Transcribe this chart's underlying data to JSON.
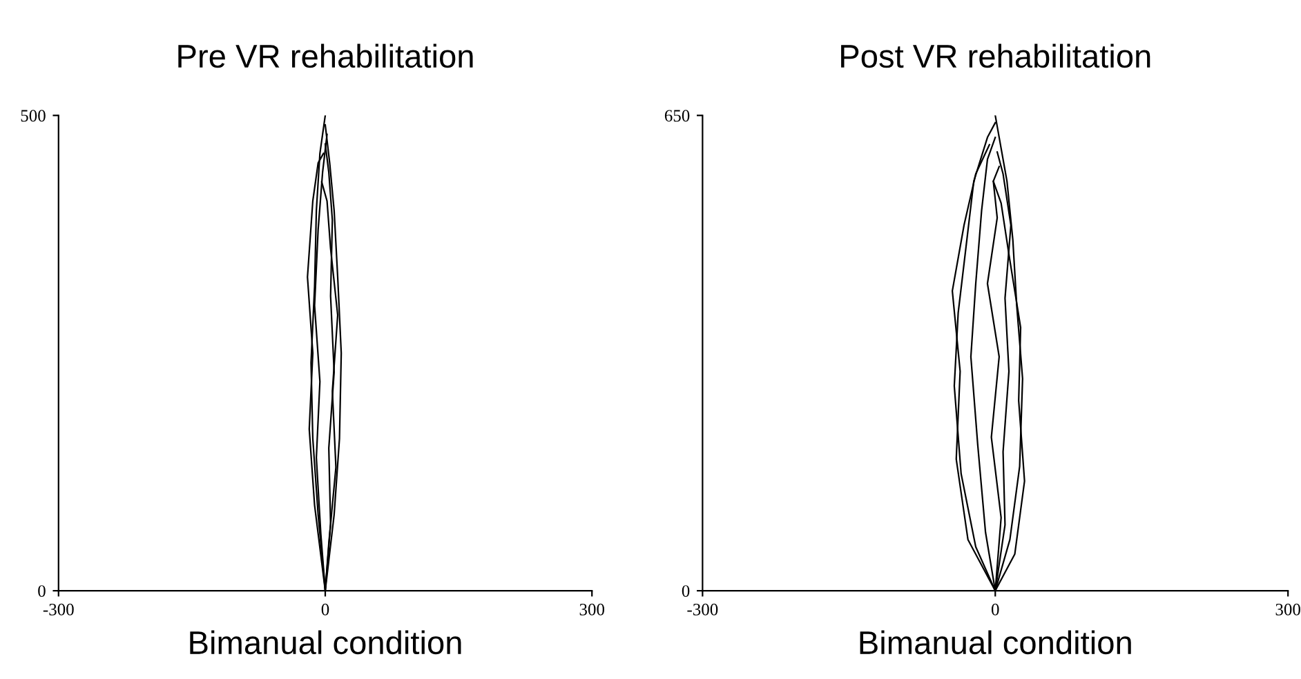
{
  "chart_data": [
    {
      "type": "line",
      "title": "Pre VR rehabilitation",
      "xlabel": "Bimanual condition",
      "xlim": [
        -300,
        300
      ],
      "xticks": [
        -300,
        0,
        300
      ],
      "ylim": [
        0,
        500
      ],
      "yticks": [
        0,
        500
      ],
      "series": [
        {
          "color": "#000000",
          "x": [
            0,
            -8,
            -14,
            -16,
            -12,
            -10,
            -6,
            0
          ],
          "values": [
            0,
            80,
            160,
            240,
            320,
            400,
            460,
            500
          ]
        },
        {
          "color": "#000000",
          "x": [
            0,
            10,
            16,
            18,
            14,
            10,
            5,
            0
          ],
          "values": [
            0,
            80,
            160,
            250,
            330,
            400,
            450,
            490
          ]
        },
        {
          "color": "#000000",
          "x": [
            0,
            -5,
            -10,
            -6,
            -12,
            -8,
            -3,
            2
          ],
          "values": [
            0,
            60,
            140,
            220,
            300,
            380,
            440,
            480
          ]
        },
        {
          "color": "#000000",
          "x": [
            0,
            6,
            4,
            10,
            6,
            8,
            4,
            0
          ],
          "values": [
            0,
            70,
            150,
            230,
            310,
            390,
            440,
            470
          ]
        },
        {
          "color": "#000000",
          "x": [
            0,
            -12,
            -18,
            -14,
            -20,
            -14,
            -8,
            -2
          ],
          "values": [
            0,
            90,
            170,
            250,
            330,
            410,
            450,
            460
          ]
        },
        {
          "color": "#000000",
          "x": [
            0,
            4,
            12,
            8,
            14,
            6,
            2,
            -4
          ],
          "values": [
            0,
            50,
            130,
            210,
            290,
            360,
            410,
            430
          ]
        }
      ]
    },
    {
      "type": "line",
      "title": "Post VR rehabilitation",
      "xlabel": "Bimanual condition",
      "xlim": [
        -300,
        300
      ],
      "xticks": [
        -300,
        0,
        300
      ],
      "ylim": [
        0,
        650
      ],
      "yticks": [
        0,
        650
      ],
      "series": [
        {
          "color": "#000000",
          "x": [
            0,
            -20,
            -35,
            -42,
            -38,
            -30,
            -22,
            -8,
            0
          ],
          "values": [
            0,
            60,
            160,
            280,
            380,
            470,
            560,
            620,
            640
          ]
        },
        {
          "color": "#000000",
          "x": [
            0,
            15,
            25,
            28,
            22,
            18,
            12,
            4,
            0
          ],
          "values": [
            0,
            70,
            170,
            290,
            390,
            480,
            560,
            620,
            650
          ]
        },
        {
          "color": "#000000",
          "x": [
            0,
            -10,
            -18,
            -25,
            -20,
            -14,
            -8,
            0
          ],
          "values": [
            0,
            80,
            200,
            320,
            420,
            520,
            590,
            620
          ]
        },
        {
          "color": "#000000",
          "x": [
            0,
            10,
            8,
            14,
            10,
            16,
            8,
            2
          ],
          "values": [
            0,
            90,
            190,
            300,
            400,
            500,
            570,
            600
          ]
        },
        {
          "color": "#000000",
          "x": [
            0,
            -28,
            -40,
            -36,
            -44,
            -32,
            -20,
            -6
          ],
          "values": [
            0,
            70,
            180,
            300,
            410,
            500,
            570,
            610
          ]
        },
        {
          "color": "#000000",
          "x": [
            0,
            6,
            -4,
            4,
            -8,
            2,
            -2,
            4
          ],
          "values": [
            0,
            100,
            210,
            320,
            420,
            510,
            560,
            580
          ]
        },
        {
          "color": "#000000",
          "x": [
            0,
            20,
            30,
            24,
            26,
            14,
            6,
            -2
          ],
          "values": [
            0,
            50,
            150,
            260,
            360,
            460,
            530,
            560
          ]
        }
      ]
    }
  ]
}
